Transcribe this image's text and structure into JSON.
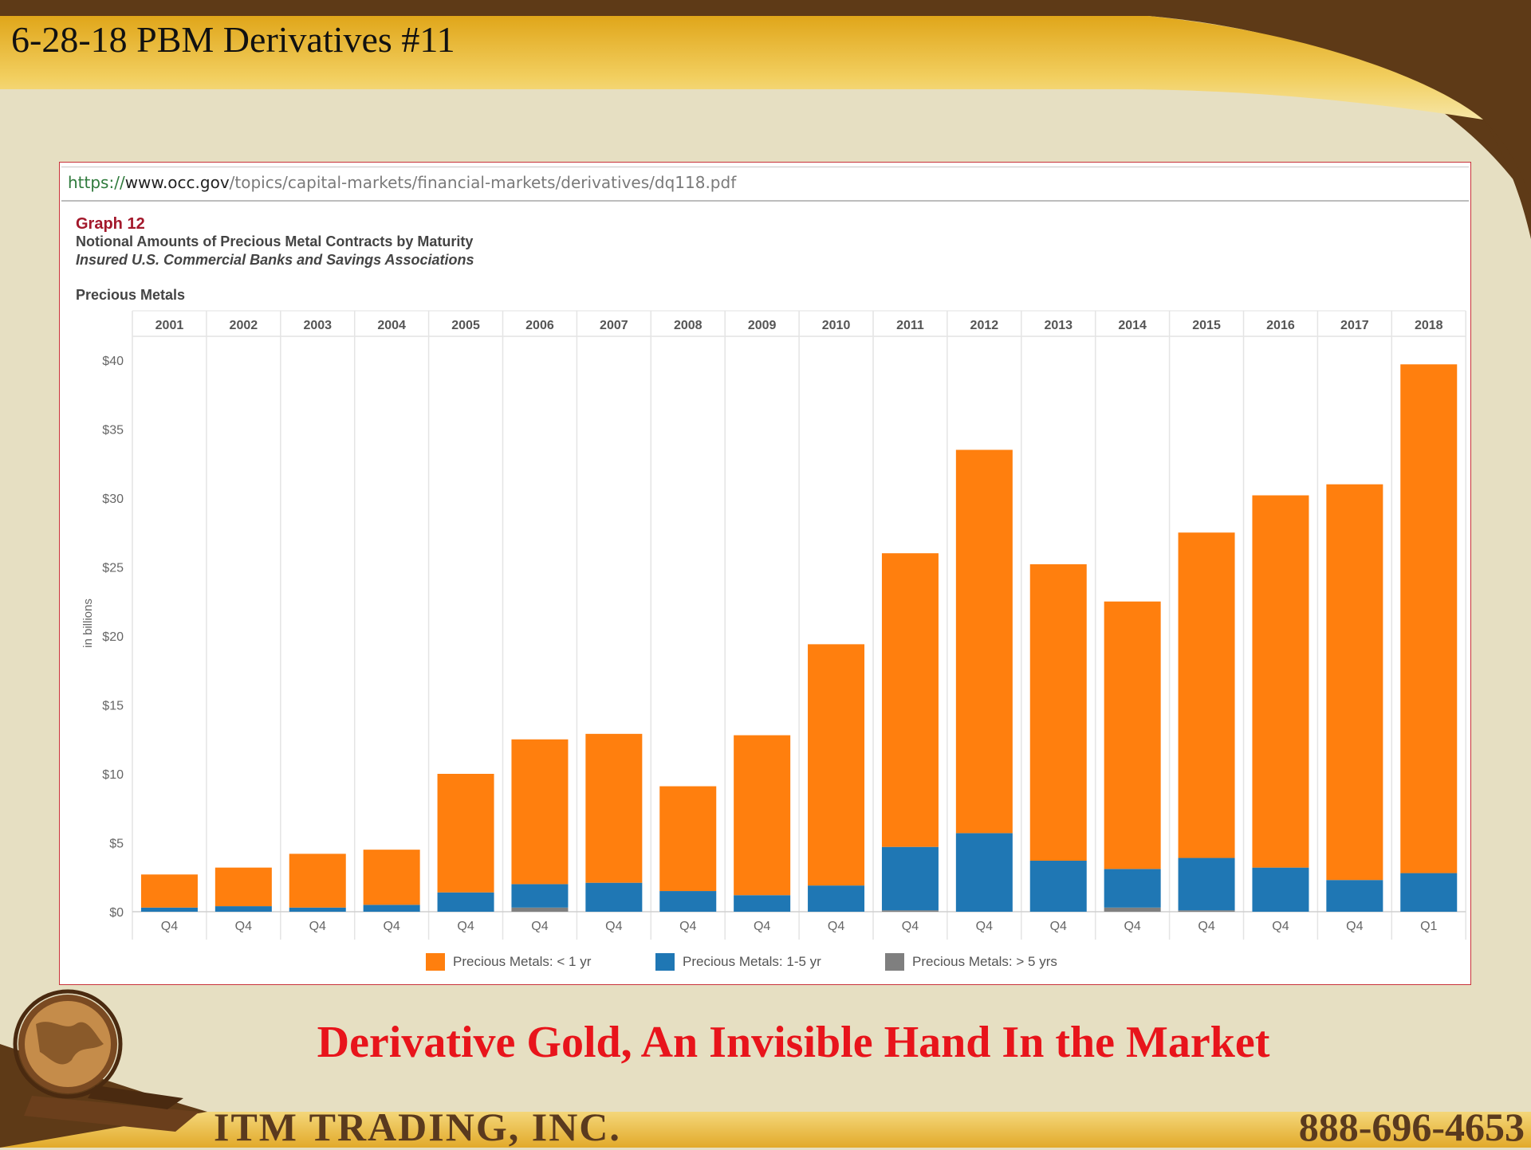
{
  "slide": {
    "title": "6-28-18 PBM Derivatives #11",
    "headline": "Derivative Gold, An Invisible Hand In the Market",
    "company": "ITM TRADING, INC.",
    "phone": "888-696-4653"
  },
  "browser": {
    "url_scheme": "https://",
    "url_host": "www.occ.gov",
    "url_path": "/topics/capital-markets/financial-markets/derivatives/dq118.pdf"
  },
  "chart_data": {
    "type": "bar",
    "stacked": true,
    "graph_label": "Graph 12",
    "title": "Notional Amounts of Precious Metal Contracts by Maturity",
    "subtitle": "Insured U.S. Commercial Banks and Savings Associations",
    "panel_label": "Precious Metals",
    "ylabel": "in billions",
    "ylim": [
      0,
      40
    ],
    "yticks": [
      "$0",
      "$5",
      "$10",
      "$15",
      "$20",
      "$25",
      "$30",
      "$35",
      "$40"
    ],
    "ytick_values": [
      0,
      5,
      10,
      15,
      20,
      25,
      30,
      35,
      40
    ],
    "years": [
      "2001",
      "2002",
      "2003",
      "2004",
      "2005",
      "2006",
      "2007",
      "2008",
      "2009",
      "2010",
      "2011",
      "2012",
      "2013",
      "2014",
      "2015",
      "2016",
      "2017",
      "2018"
    ],
    "quarters": [
      "Q4",
      "Q4",
      "Q4",
      "Q4",
      "Q4",
      "Q4",
      "Q4",
      "Q4",
      "Q4",
      "Q4",
      "Q4",
      "Q4",
      "Q4",
      "Q4",
      "Q4",
      "Q4",
      "Q4",
      "Q1"
    ],
    "grid": true,
    "legend_position": "bottom",
    "series": [
      {
        "name": "Precious Metals: > 5 yrs",
        "color": "#7f7f7f",
        "values": [
          0,
          0,
          0,
          0,
          0,
          0.3,
          0,
          0,
          0,
          0,
          0.1,
          0,
          0,
          0.3,
          0.1,
          0,
          0,
          0
        ]
      },
      {
        "name": "Precious Metals: 1-5 yr",
        "color": "#1f77b4",
        "values": [
          0.3,
          0.4,
          0.3,
          0.5,
          1.4,
          1.7,
          2.1,
          1.5,
          1.2,
          1.9,
          4.6,
          5.7,
          3.7,
          2.8,
          3.8,
          3.2,
          2.3,
          2.8
        ]
      },
      {
        "name": "Precious Metals: < 1 yr",
        "color": "#ff7f0e",
        "values": [
          2.4,
          2.8,
          3.9,
          4.0,
          8.6,
          10.5,
          10.8,
          7.6,
          11.6,
          17.5,
          21.3,
          27.8,
          21.5,
          19.4,
          23.6,
          27.0,
          28.7,
          36.9
        ]
      }
    ]
  }
}
